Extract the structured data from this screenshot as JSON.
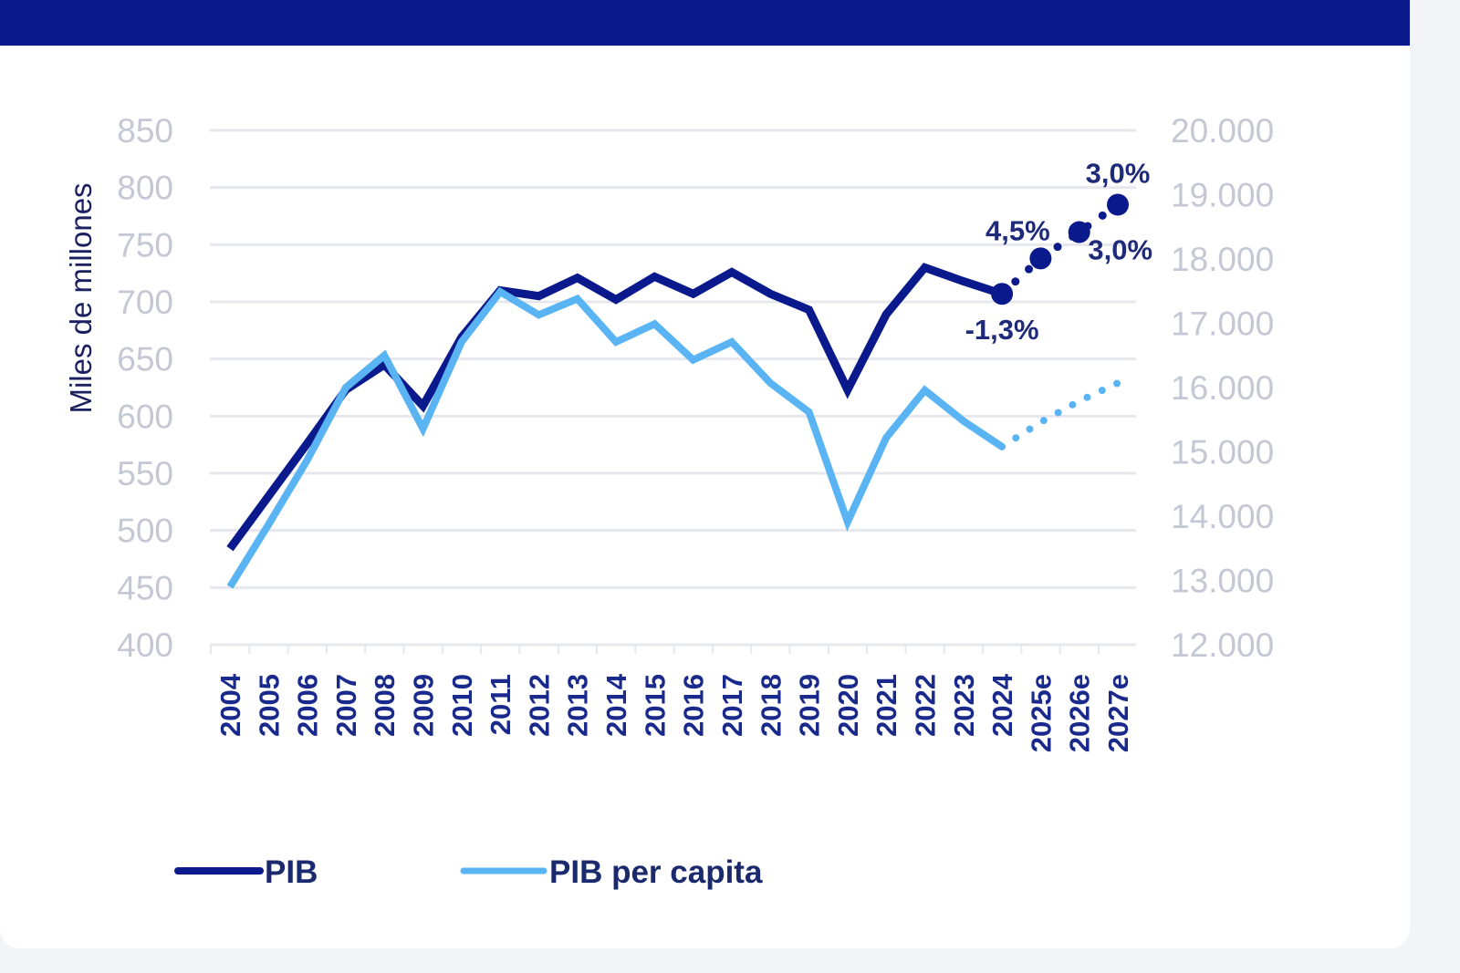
{
  "colors": {
    "header_bar": "#0a1a8c",
    "pib": "#0a1a8c",
    "pib_per_capita": "#5ab4f4",
    "grid": "#e6e8ee"
  },
  "chart_data": {
    "type": "line",
    "ylabel": "Miles de millones",
    "categories": [
      "2004",
      "2005",
      "2006",
      "2007",
      "2008",
      "2009",
      "2010",
      "2011",
      "2012",
      "2013",
      "2014",
      "2015",
      "2016",
      "2017",
      "2018",
      "2019",
      "2020",
      "2021",
      "2022",
      "2023",
      "2024",
      "2025e",
      "2026e",
      "2027e"
    ],
    "y_left": {
      "range": [
        400,
        850
      ],
      "ticks": [
        "850",
        "800",
        "750",
        "700",
        "650",
        "600",
        "550",
        "500",
        "450",
        "400"
      ]
    },
    "y_right": {
      "range": [
        12000,
        20000
      ],
      "ticks": [
        "20.000",
        "19.000",
        "18.000",
        "17.000",
        "16.000",
        "15.000",
        "14.000",
        "13.000",
        "12.000"
      ]
    },
    "grid": true,
    "legend_position": "bottom-left",
    "series": [
      {
        "name": "PIB",
        "axis": "left",
        "forecast_from": "2024",
        "values": [
          484,
          530,
          576,
          623,
          645,
          609,
          669,
          710,
          705,
          721,
          702,
          722,
          707,
          726,
          707,
          693,
          623,
          689,
          730,
          718,
          707,
          738,
          761,
          785
        ]
      },
      {
        "name": "PIB per capita",
        "axis": "right",
        "forecast_from": "2024",
        "values": [
          12900,
          13870,
          14870,
          16000,
          16500,
          15360,
          16710,
          17490,
          17130,
          17380,
          16710,
          16990,
          16430,
          16710,
          16070,
          15620,
          13910,
          15220,
          15960,
          15480,
          15080,
          15460,
          15790,
          16070
        ]
      }
    ],
    "annotations": [
      {
        "text": "-1,3%",
        "at": "2024"
      },
      {
        "text": "4,5%",
        "at": "2025e"
      },
      {
        "text": "3,0%",
        "at": "2026e"
      },
      {
        "text": "3,0%",
        "at": "2027e"
      }
    ]
  }
}
